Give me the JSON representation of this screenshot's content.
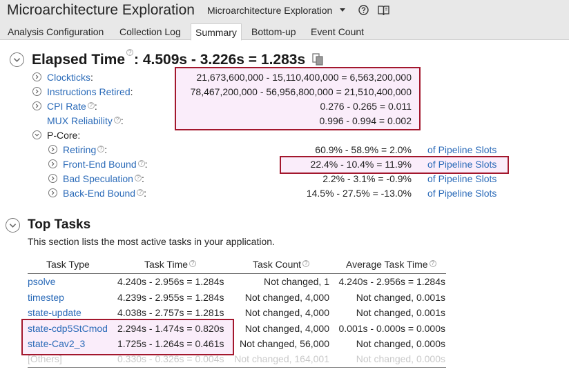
{
  "window": {
    "title": "Microarchitecture Exploration",
    "view_selector": "Microarchitecture Exploration"
  },
  "tabs": [
    {
      "label": "Analysis Configuration",
      "active": false
    },
    {
      "label": "Collection Log",
      "active": false
    },
    {
      "label": "Summary",
      "active": true
    },
    {
      "label": "Bottom-up",
      "active": false
    },
    {
      "label": "Event Count",
      "active": false
    }
  ],
  "elapsed": {
    "label": "Elapsed Time",
    "value": ": 4.509s - 3.226s = 1.283s"
  },
  "metrics": [
    {
      "label": "Clockticks",
      "suffix": ":",
      "value": "21,673,600,000 - 15,110,400,000 = 6,563,200,000"
    },
    {
      "label": "Instructions Retired",
      "suffix": ":",
      "value": "78,467,200,000 - 56,956,800,000 = 21,510,400,000"
    },
    {
      "label": "CPI Rate",
      "suffix": ":",
      "value": "0.276 - 0.265 = 0.011"
    },
    {
      "label": "MUX Reliability",
      "suffix": ":",
      "value": "0.996 - 0.994 = 0.002"
    }
  ],
  "pcore": {
    "label": "P-Core:",
    "items": [
      {
        "label": "Retiring",
        "suffix": ":",
        "value": "60.9% - 58.9% = 2.0%",
        "unit": "of Pipeline Slots"
      },
      {
        "label": "Front-End Bound",
        "suffix": ":",
        "value": "22.4% - 10.4% = 11.9%",
        "unit": "of Pipeline Slots"
      },
      {
        "label": "Bad Speculation",
        "suffix": ":",
        "value": "2.2% - 3.1% = -0.9%",
        "unit": "of Pipeline Slots"
      },
      {
        "label": "Back-End Bound",
        "suffix": ":",
        "value": "14.5% - 27.5% = -13.0%",
        "unit": "of Pipeline Slots"
      }
    ]
  },
  "top_tasks": {
    "title": "Top Tasks",
    "description": "This section lists the most active tasks in your application.",
    "columns": [
      "Task Type",
      "Task Time",
      "Task Count",
      "Average Task Time"
    ],
    "rows": [
      {
        "type": "psolve",
        "time": "4.240s - 2.956s = 1.284s",
        "count": "Not changed, 1",
        "avg": "4.240s - 2.956s = 1.284s"
      },
      {
        "type": "timestep",
        "time": "4.239s - 2.955s = 1.284s",
        "count": "Not changed, 4,000",
        "avg": "Not changed, 0.001s"
      },
      {
        "type": "state-update",
        "time": "4.038s - 2.757s = 1.281s",
        "count": "Not changed, 4,000",
        "avg": "Not changed, 0.001s"
      },
      {
        "type": "state-cdp5StCmod",
        "time": "2.294s - 1.474s = 0.820s",
        "count": "Not changed, 4,000",
        "avg": "0.001s - 0.000s = 0.000s"
      },
      {
        "type": "state-Cav2_3",
        "time": "1.725s - 1.264s = 0.461s",
        "count": "Not changed, 56,000",
        "avg": "Not changed, 0.000s"
      },
      {
        "type": "[Others]",
        "time": "0.330s - 0.326s = 0.004s",
        "count": "Not changed, 164,001",
        "avg": "Not changed, 0.000s"
      }
    ]
  },
  "colors": {
    "link": "#2a6ab8",
    "highlight_border": "#a3172d",
    "header_bg": "#e8e8e8"
  },
  "icons": [
    "chevron-down-icon",
    "help-icon",
    "book-icon",
    "copy-icon",
    "chevron-right-icon",
    "question-icon"
  ]
}
